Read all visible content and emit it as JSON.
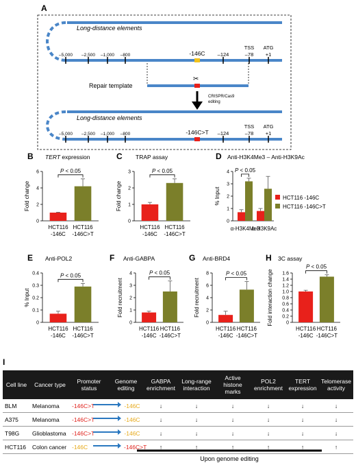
{
  "panelA": {
    "label": "A",
    "long_distance_top": "Long-distance elements",
    "long_distance_bottom": "Long-distance elements",
    "ticks_top": [
      "–5,000",
      "–2,500",
      "–1,000",
      "–800",
      "-146C",
      "–124",
      "TSS",
      "–78",
      "ATG",
      "+1"
    ],
    "ticks_bottom": [
      "–5,000",
      "–2,500",
      "–1,000",
      "–800",
      "-146C>T",
      "–124",
      "TSS",
      "–78",
      "ATG",
      "+1"
    ],
    "repair_template": "Repair template",
    "crispr_line1": "CRISPR/Cas9",
    "crispr_line2": "editing",
    "scissors": "✂"
  },
  "legend": {
    "item1": "HCT116 -146C",
    "item2": "HCT116 -146C>T",
    "color1": "#e8211b",
    "color2": "#7b7f2a"
  },
  "significance": "P < 0.05",
  "chart_data": [
    {
      "label": "B",
      "type": "bar",
      "title": "TERT expression",
      "ylabel": "Fold change",
      "categories": [
        "HCT116 -146C",
        "HCT116 -146C>T"
      ],
      "cat_lines": [
        [
          "HCT116",
          "-146C"
        ],
        [
          "HCT116",
          "-146C>T"
        ]
      ],
      "values": [
        1.0,
        4.2
      ],
      "errors": [
        0.05,
        0.9
      ],
      "ylim": [
        0,
        6
      ],
      "yticks": [
        "0",
        "2",
        "4",
        "6"
      ]
    },
    {
      "label": "C",
      "type": "bar",
      "title": "TRAP assay",
      "ylabel": "Fold change",
      "categories": [
        "HCT116 -146C",
        "HCT116 -146C>T"
      ],
      "cat_lines": [
        [
          "HCT116",
          "-146C"
        ],
        [
          "HCT116",
          "-146C>T"
        ]
      ],
      "values": [
        1.0,
        2.3
      ],
      "errors": [
        0.12,
        0.25
      ],
      "ylim": [
        0,
        3
      ],
      "yticks": [
        "0",
        "1",
        "2",
        "3"
      ]
    },
    {
      "label": "D",
      "type": "bar",
      "title": "Anti-H3K4Me3 – Anti-H3K9Ac",
      "ylabel": "% Input",
      "categories": [
        "α-H3K4Me3",
        "α-H3K9Ac"
      ],
      "series": [
        {
          "name": "HCT116 -146C",
          "values": [
            0.7,
            0.8
          ],
          "errors": [
            0.2,
            0.2
          ]
        },
        {
          "name": "HCT116 -146C>T",
          "values": [
            3.2,
            2.6
          ],
          "errors": [
            0.25,
            1.0
          ]
        }
      ],
      "ylim": [
        0,
        4
      ],
      "yticks": [
        "0",
        "1",
        "2",
        "3",
        "4"
      ]
    },
    {
      "label": "E",
      "type": "bar",
      "title": "Anti-POL2",
      "ylabel": "% Input",
      "categories": [
        "HCT116 -146C",
        "HCT116 -146C>T"
      ],
      "cat_lines": [
        [
          "HCT116",
          "-146C"
        ],
        [
          "HCT116",
          "-146C>T"
        ]
      ],
      "values": [
        0.07,
        0.29
      ],
      "errors": [
        0.02,
        0.025
      ],
      "ylim": [
        0,
        0.4
      ],
      "yticks": [
        "0",
        "0.1",
        "0.2",
        "0.3",
        "0.4"
      ]
    },
    {
      "label": "F",
      "type": "bar",
      "title": "Anti-GABPA",
      "ylabel": "Fold recruitment",
      "categories": [
        "HCT116 -146C",
        "HCT116 -146C>T"
      ],
      "cat_lines": [
        [
          "HCT116",
          "-146C"
        ],
        [
          "HCT116",
          "-146C>T"
        ]
      ],
      "values": [
        0.8,
        2.5
      ],
      "errors": [
        0.1,
        0.85
      ],
      "ylim": [
        0,
        4
      ],
      "yticks": [
        "0",
        "1",
        "2",
        "3",
        "4"
      ]
    },
    {
      "label": "G",
      "type": "bar",
      "title": "Anti-BRD4",
      "ylabel": "Fold recruitment",
      "categories": [
        "HCT116 -146C",
        "HCT116 -146C>T"
      ],
      "cat_lines": [
        [
          "HCT116",
          "-146C"
        ],
        [
          "HCT116",
          "-146C>T"
        ]
      ],
      "values": [
        1.2,
        5.3
      ],
      "errors": [
        0.6,
        1.3
      ],
      "ylim": [
        0,
        8
      ],
      "yticks": [
        "0",
        "2",
        "4",
        "6",
        "8"
      ]
    },
    {
      "label": "H",
      "type": "bar",
      "title": "3C assay",
      "ylabel": "Fold interaction change",
      "categories": [
        "HCT116 -146C",
        "HCT116 -146C>T"
      ],
      "cat_lines": [
        [
          "HCT116",
          "-146C"
        ],
        [
          "HCT116",
          "-146C>T"
        ]
      ],
      "values": [
        1.0,
        1.48
      ],
      "errors": [
        0.04,
        0.06
      ],
      "ylim": [
        0,
        1.6
      ],
      "yticks": [
        "0",
        "0.2",
        "0.4",
        "0.6",
        "0.8",
        "1.0",
        "1.2",
        "1.4",
        "1.6"
      ]
    }
  ],
  "panelI": {
    "label": "I",
    "headers": [
      "Cell line",
      "Cancer type",
      "Promoter status",
      "Genome editing",
      "GABPA enrichment",
      "Long-range interaction",
      "Active histone marks",
      "POL2 enrichment",
      "TERT expression",
      "Telomerase activity"
    ],
    "rows": [
      {
        "cell": "BLM",
        "cancer": "Melanoma",
        "status": "-146C>T",
        "edit": "-146C",
        "dir": "↓"
      },
      {
        "cell": "A375",
        "cancer": "Melanoma",
        "status": "-146C>T",
        "edit": "-146C",
        "dir": "↓"
      },
      {
        "cell": "T98G",
        "cancer": "Glioblastoma",
        "status": "-146C>T",
        "edit": "-146C",
        "dir": "↓"
      },
      {
        "cell": "HCT116",
        "cancer": "Colon cancer",
        "status": "-146C",
        "edit": "-146C>T",
        "dir": "↑"
      }
    ],
    "footer": "Upon genome editing"
  }
}
